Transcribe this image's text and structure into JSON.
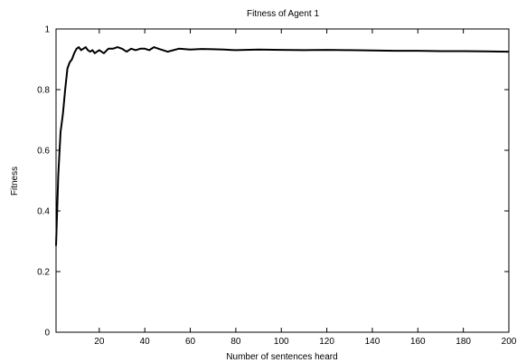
{
  "chart_data": {
    "type": "line",
    "title": "Fitness of Agent 1",
    "xlabel": "Number of sentences heard",
    "ylabel": "Fitness",
    "xlim": [
      1,
      200
    ],
    "ylim": [
      0,
      1
    ],
    "xticks": [
      20,
      40,
      60,
      80,
      100,
      120,
      140,
      160,
      180,
      200
    ],
    "xtick_labels": [
      "20",
      "40",
      "60",
      "80",
      "100",
      "120",
      "140",
      "160",
      "180",
      "200"
    ],
    "yticks": [
      0,
      0.2,
      0.4,
      0.6,
      0.8,
      1
    ],
    "ytick_labels": [
      "0",
      "0.2",
      "0.4",
      "0.6",
      "0.8",
      "1"
    ],
    "grid": false,
    "legend": "none",
    "series": [
      {
        "color": "#000000",
        "x": [
          1,
          2,
          3,
          4,
          5,
          6,
          7,
          8,
          9,
          10,
          11,
          12,
          13,
          14,
          15,
          16,
          17,
          18,
          19,
          20,
          22,
          24,
          26,
          28,
          30,
          32,
          34,
          36,
          38,
          40,
          42,
          44,
          46,
          48,
          50,
          55,
          60,
          65,
          70,
          75,
          80,
          90,
          100,
          110,
          120,
          130,
          140,
          150,
          160,
          170,
          180,
          190,
          200
        ],
        "y": [
          0.285,
          0.52,
          0.66,
          0.72,
          0.8,
          0.87,
          0.89,
          0.9,
          0.92,
          0.935,
          0.94,
          0.93,
          0.935,
          0.94,
          0.93,
          0.925,
          0.93,
          0.92,
          0.925,
          0.93,
          0.92,
          0.935,
          0.935,
          0.94,
          0.935,
          0.925,
          0.935,
          0.93,
          0.935,
          0.935,
          0.93,
          0.94,
          0.935,
          0.93,
          0.925,
          0.935,
          0.932,
          0.934,
          0.933,
          0.932,
          0.93,
          0.932,
          0.931,
          0.93,
          0.931,
          0.93,
          0.929,
          0.928,
          0.928,
          0.927,
          0.927,
          0.926,
          0.925
        ]
      }
    ]
  }
}
